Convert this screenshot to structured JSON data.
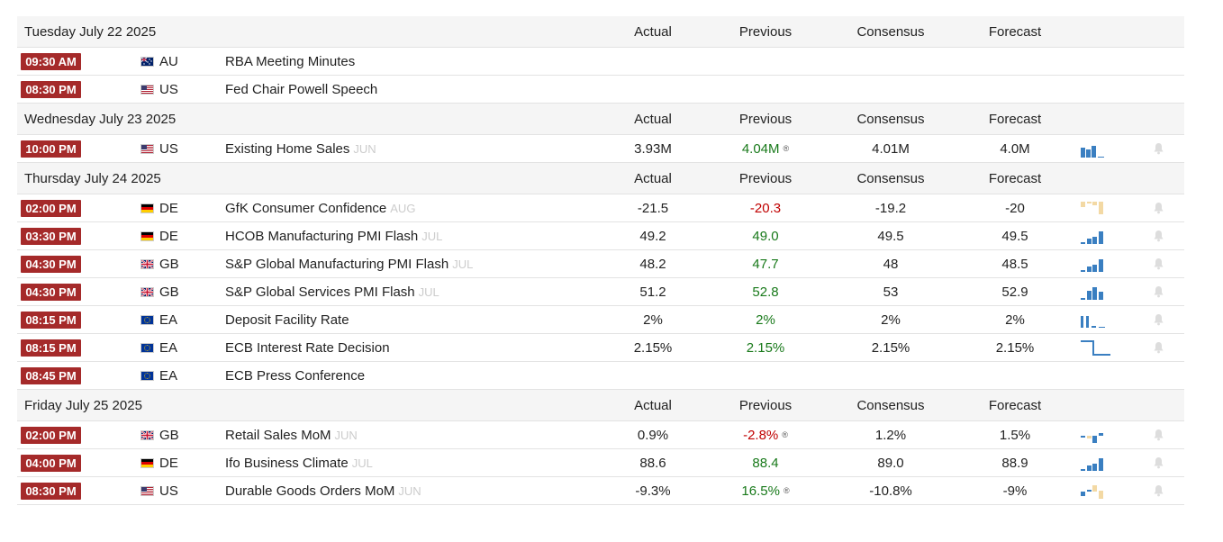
{
  "columns": {
    "actual": "Actual",
    "previous": "Previous",
    "consensus": "Consensus",
    "forecast": "Forecast"
  },
  "days": [
    {
      "title": "Tuesday July 22 2025",
      "events": [
        {
          "time": "09:30 AM",
          "country": "AU",
          "flag": "au",
          "name": "RBA Meeting Minutes",
          "period": "",
          "actual": "",
          "previous": "",
          "previous_color": "",
          "revised": false,
          "consensus": "",
          "forecast": "",
          "spark": "none",
          "bell": false
        },
        {
          "time": "08:30 PM",
          "country": "US",
          "flag": "us",
          "name": "Fed Chair Powell Speech",
          "period": "",
          "actual": "",
          "previous": "",
          "previous_color": "",
          "revised": false,
          "consensus": "",
          "forecast": "",
          "spark": "none",
          "bell": false
        }
      ]
    },
    {
      "title": "Wednesday July 23 2025",
      "events": [
        {
          "time": "10:00 PM",
          "country": "US",
          "flag": "us",
          "name": "Existing Home Sales",
          "period": "JUN",
          "actual": "3.93M",
          "previous": "4.04M",
          "previous_color": "green",
          "revised": true,
          "consensus": "4.01M",
          "forecast": "4.0M",
          "spark": "bars-a",
          "bell": true
        }
      ]
    },
    {
      "title": "Thursday July 24 2025",
      "events": [
        {
          "time": "02:00 PM",
          "country": "DE",
          "flag": "de",
          "name": "GfK Consumer Confidence",
          "period": "AUG",
          "actual": "-21.5",
          "previous": "-20.3",
          "previous_color": "red",
          "revised": false,
          "consensus": "-19.2",
          "forecast": "-20",
          "spark": "neg",
          "bell": true
        },
        {
          "time": "03:30 PM",
          "country": "DE",
          "flag": "de",
          "name": "HCOB Manufacturing PMI Flash",
          "period": "JUL",
          "actual": "49.2",
          "previous": "49.0",
          "previous_color": "green",
          "revised": false,
          "consensus": "49.5",
          "forecast": "49.5",
          "spark": "rising",
          "bell": true
        },
        {
          "time": "04:30 PM",
          "country": "GB",
          "flag": "gb",
          "name": "S&P Global Manufacturing PMI Flash",
          "period": "JUL",
          "actual": "48.2",
          "previous": "47.7",
          "previous_color": "green",
          "revised": false,
          "consensus": "48",
          "forecast": "48.5",
          "spark": "rising",
          "bell": true
        },
        {
          "time": "04:30 PM",
          "country": "GB",
          "flag": "gb",
          "name": "S&P Global Services PMI Flash",
          "period": "JUL",
          "actual": "51.2",
          "previous": "52.8",
          "previous_color": "green",
          "revised": false,
          "consensus": "53",
          "forecast": "52.9",
          "spark": "mid",
          "bell": true
        },
        {
          "time": "08:15 PM",
          "country": "EA",
          "flag": "ea",
          "name": "Deposit Facility Rate",
          "period": "",
          "actual": "2%",
          "previous": "2%",
          "previous_color": "green",
          "revised": false,
          "consensus": "2%",
          "forecast": "2%",
          "spark": "bars-b",
          "bell": true
        },
        {
          "time": "08:15 PM",
          "country": "EA",
          "flag": "ea",
          "name": "ECB Interest Rate Decision",
          "period": "",
          "actual": "2.15%",
          "previous": "2.15%",
          "previous_color": "green",
          "revised": false,
          "consensus": "2.15%",
          "forecast": "2.15%",
          "spark": "step",
          "bell": true
        },
        {
          "time": "08:45 PM",
          "country": "EA",
          "flag": "ea",
          "name": "ECB Press Conference",
          "period": "",
          "actual": "",
          "previous": "",
          "previous_color": "",
          "revised": false,
          "consensus": "",
          "forecast": "",
          "spark": "none",
          "bell": false
        }
      ]
    },
    {
      "title": "Friday July 25 2025",
      "events": [
        {
          "time": "02:00 PM",
          "country": "GB",
          "flag": "gb",
          "name": "Retail Sales MoM",
          "period": "JUN",
          "actual": "0.9%",
          "previous": "-2.8%",
          "previous_color": "red",
          "revised": true,
          "consensus": "1.2%",
          "forecast": "1.5%",
          "spark": "mixed-a",
          "bell": true
        },
        {
          "time": "04:00 PM",
          "country": "DE",
          "flag": "de",
          "name": "Ifo Business Climate",
          "period": "JUL",
          "actual": "88.6",
          "previous": "88.4",
          "previous_color": "green",
          "revised": false,
          "consensus": "89.0",
          "forecast": "88.9",
          "spark": "rising",
          "bell": true
        },
        {
          "time": "08:30 PM",
          "country": "US",
          "flag": "us",
          "name": "Durable Goods Orders MoM",
          "period": "JUN",
          "actual": "-9.3%",
          "previous": "16.5%",
          "previous_color": "green",
          "revised": true,
          "consensus": "-10.8%",
          "forecast": "-9%",
          "spark": "mixed-b",
          "bell": true
        }
      ]
    }
  ],
  "revised_mark": "®",
  "icon_names": {
    "bell": "bell-icon",
    "spark": "sparkline-chart"
  }
}
